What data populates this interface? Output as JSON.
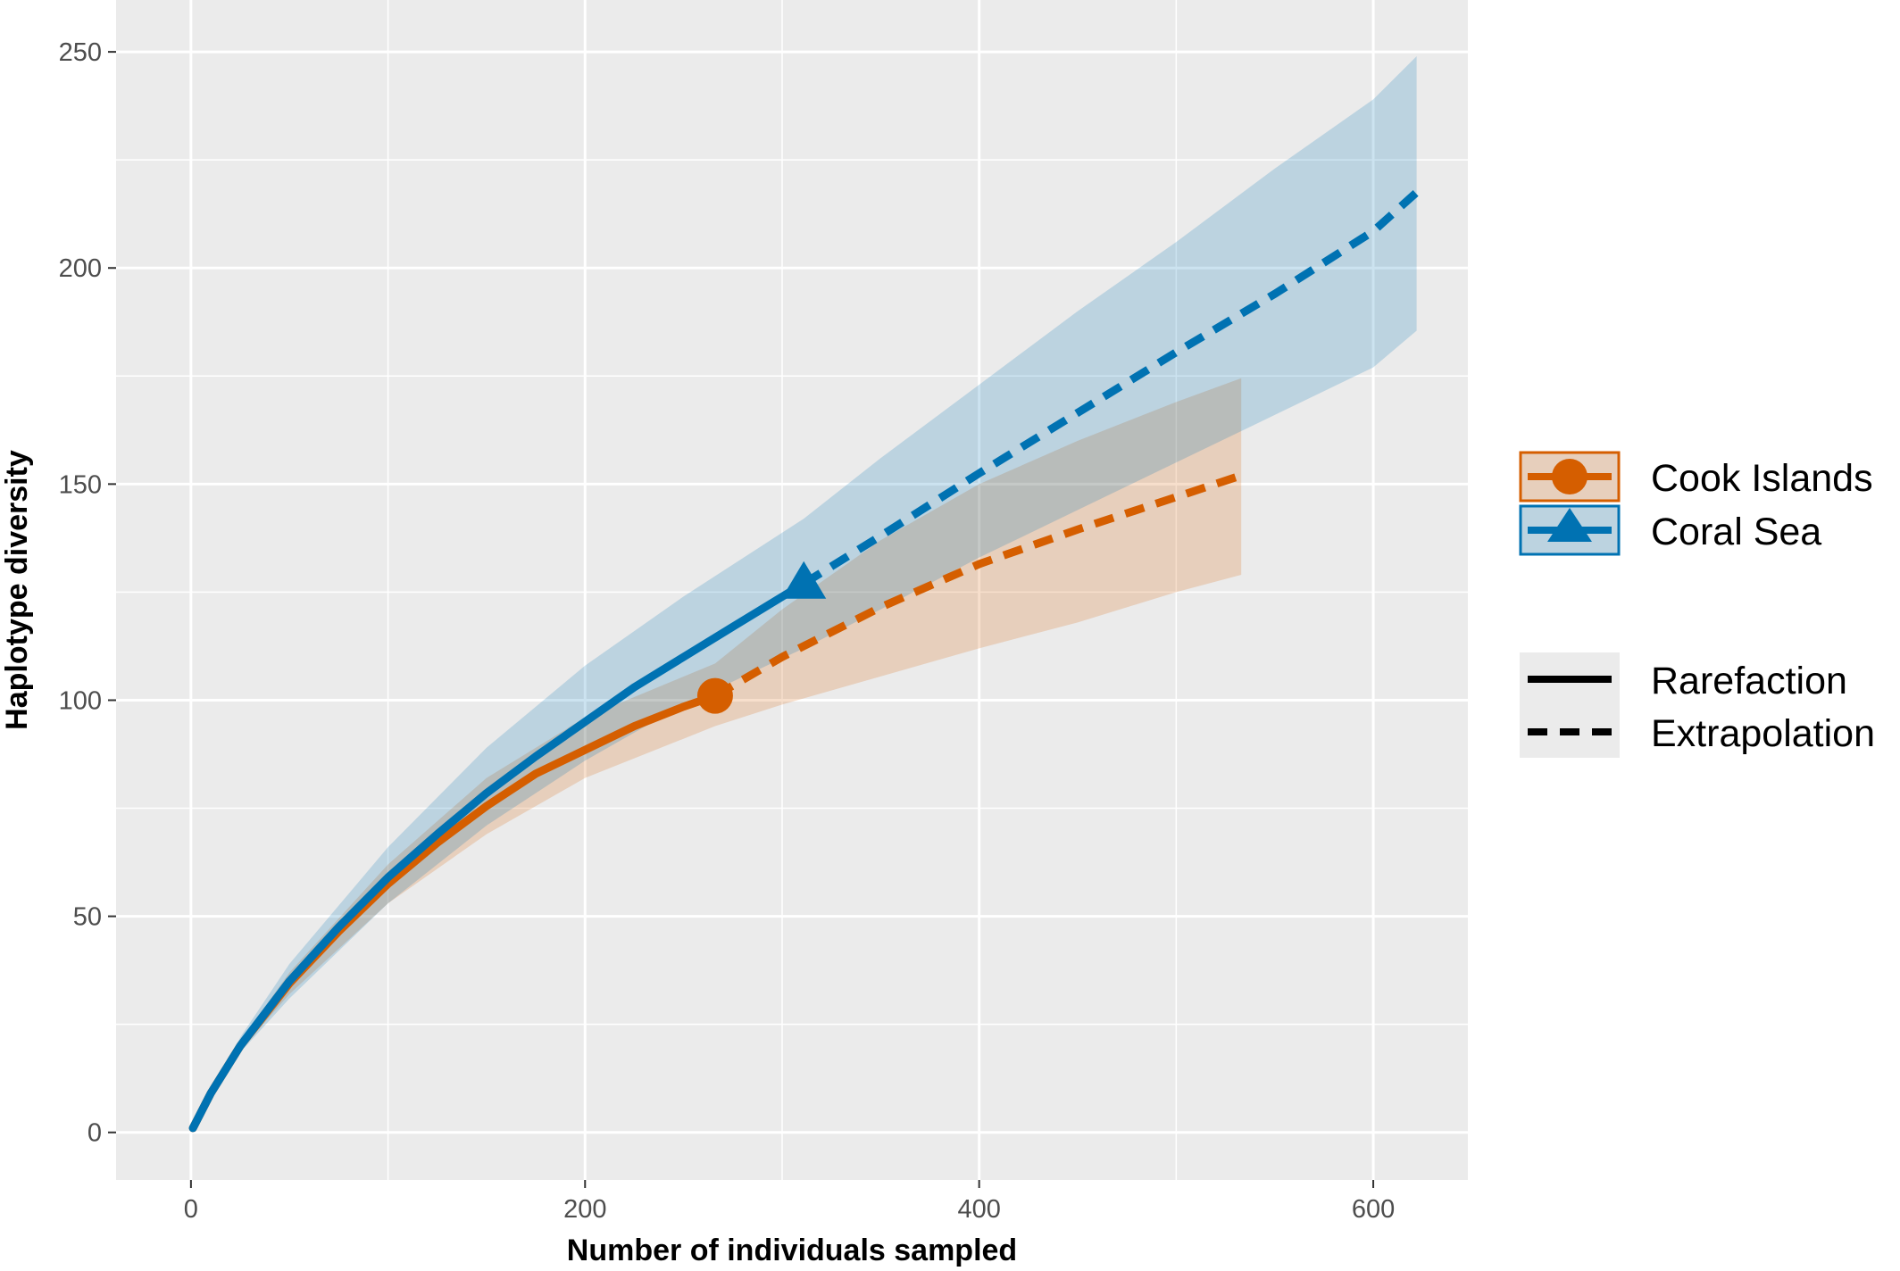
{
  "chart_data": {
    "type": "line",
    "title": "",
    "xlabel": "Number of individuals sampled",
    "ylabel": "Haplotype diversity",
    "xlim": [
      -38,
      648
    ],
    "ylim": [
      -11,
      262
    ],
    "x_ticks": [
      0,
      200,
      400,
      600
    ],
    "x_tick_labels": [
      "0",
      "200",
      "400",
      "600"
    ],
    "y_ticks": [
      0,
      50,
      100,
      150,
      200,
      250
    ],
    "y_tick_labels": [
      "0",
      "50",
      "100",
      "150",
      "200",
      "250"
    ],
    "grid": true,
    "legend_position": "right",
    "series": [
      {
        "name": "Cook Islands",
        "color": "#D55E00",
        "marker": "circle",
        "observed": {
          "x": 266,
          "y": 101
        },
        "rarefaction": {
          "x": [
            1,
            10,
            25,
            50,
            75,
            100,
            125,
            150,
            175,
            200,
            225,
            250,
            266
          ],
          "y": [
            1,
            9,
            20,
            34.5,
            46.5,
            57.5,
            67,
            75.5,
            83,
            88.5,
            94,
            98.5,
            101
          ]
        },
        "extrapolation": {
          "x": [
            266,
            300,
            350,
            400,
            450,
            500,
            533
          ],
          "y": [
            101,
            110,
            121.5,
            131.5,
            139.5,
            147,
            152
          ]
        },
        "ci_lower": {
          "x": [
            1,
            25,
            50,
            100,
            150,
            200,
            266,
            300,
            350,
            400,
            450,
            500,
            533
          ],
          "y": [
            1,
            19,
            32,
            53,
            69,
            82,
            94,
            99,
            105.5,
            112,
            118,
            125,
            129
          ]
        },
        "ci_upper": {
          "x": [
            1,
            25,
            50,
            100,
            150,
            200,
            266,
            300,
            350,
            400,
            450,
            500,
            533
          ],
          "y": [
            1,
            21,
            37,
            62,
            82,
            96,
            108.5,
            121,
            137,
            150,
            160,
            169,
            174.5
          ]
        }
      },
      {
        "name": "Coral Sea",
        "color": "#0072B2",
        "marker": "triangle",
        "observed": {
          "x": 311,
          "y": 127
        },
        "rarefaction": {
          "x": [
            1,
            10,
            25,
            50,
            75,
            100,
            125,
            150,
            175,
            200,
            225,
            250,
            275,
            311
          ],
          "y": [
            1,
            9,
            20,
            35,
            47.5,
            59,
            69,
            78.5,
            87,
            95,
            103,
            110,
            117,
            127
          ]
        },
        "extrapolation": {
          "x": [
            311,
            350,
            400,
            450,
            500,
            550,
            600,
            622
          ],
          "y": [
            127,
            138,
            152.5,
            166.5,
            180.5,
            194,
            208.5,
            217.5
          ]
        },
        "ci_lower": {
          "x": [
            1,
            25,
            50,
            100,
            150,
            200,
            250,
            311,
            350,
            400,
            450,
            500,
            550,
            600,
            622
          ],
          "y": [
            1,
            18.5,
            31,
            53,
            71,
            86,
            99,
            112,
            121,
            133,
            144,
            155,
            166,
            177,
            185.5
          ]
        },
        "ci_upper": {
          "x": [
            1,
            25,
            50,
            100,
            150,
            200,
            250,
            311,
            350,
            400,
            450,
            500,
            550,
            600,
            622
          ],
          "y": [
            1,
            22,
            39,
            66,
            89,
            108,
            124,
            142,
            156,
            173,
            190,
            206,
            223,
            239,
            249
          ]
        }
      }
    ],
    "legend": {
      "series_labels": [
        "Cook Islands",
        "Coral Sea"
      ],
      "method_labels": [
        "Rarefaction",
        "Extrapolation"
      ]
    }
  }
}
